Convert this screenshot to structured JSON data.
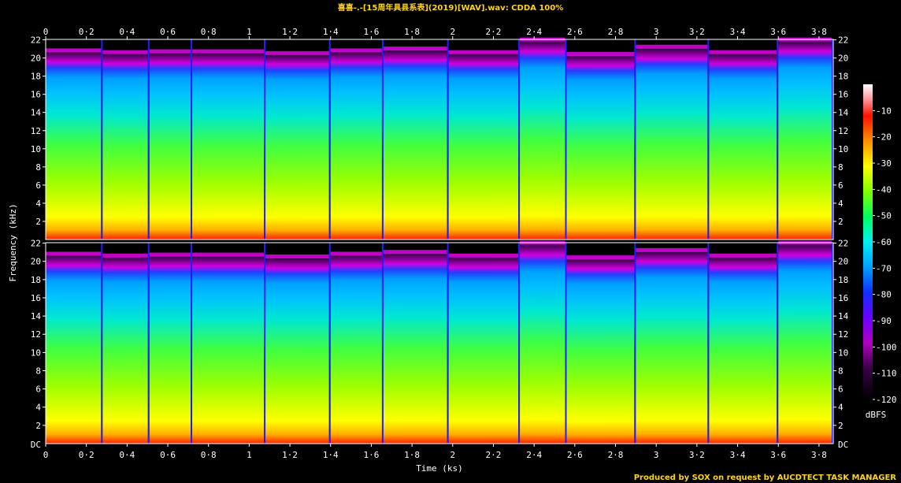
{
  "title": "喜喜-.-[15周年具县系表](2019)[WAV].wav: CDDA 100%",
  "footer": "Produced by SOX on request by AUCDTECT TASK MANAGER",
  "chart_data": {
    "type": "heatmap",
    "subtype": "spectrogram",
    "channels": 2,
    "xlabel": "Time (ks)",
    "ylabel": "Frequency (kHz)",
    "xlim": [
      0,
      3.87
    ],
    "ylim": [
      0,
      22.05
    ],
    "x_ticks": [
      "0",
      "0·2",
      "0·4",
      "0·6",
      "0·8",
      "1",
      "1·2",
      "1·4",
      "1·6",
      "1·8",
      "2",
      "2·2",
      "2·4",
      "2·6",
      "2·8",
      "3",
      "3·2",
      "3·4",
      "3·6",
      "3·8"
    ],
    "x_tick_values": [
      0,
      0.2,
      0.4,
      0.6,
      0.8,
      1.0,
      1.2,
      1.4,
      1.6,
      1.8,
      2.0,
      2.2,
      2.4,
      2.6,
      2.8,
      3.0,
      3.2,
      3.4,
      3.6,
      3.8
    ],
    "y_ticks": [
      "2",
      "4",
      "6",
      "8",
      "10",
      "12",
      "14",
      "16",
      "18",
      "20",
      "22"
    ],
    "y_tick_values": [
      2,
      4,
      6,
      8,
      10,
      12,
      14,
      16,
      18,
      20,
      22
    ],
    "y_tick_dc_label": "DC",
    "colorbar": {
      "label": "dBFS",
      "ticks": [
        "-10",
        "-20",
        "-30",
        "-40",
        "-50",
        "-60",
        "-70",
        "-80",
        "-90",
        "-100",
        "-110",
        "-120"
      ],
      "tick_values": [
        -10,
        -20,
        -30,
        -40,
        -50,
        -60,
        -70,
        -80,
        -90,
        -100,
        -110,
        -120
      ],
      "range": [
        -120,
        0
      ]
    },
    "track_boundaries_ks": [
      0,
      0.28,
      0.51,
      0.72,
      1.08,
      1.4,
      1.66,
      1.98,
      2.33,
      2.56,
      2.9,
      3.26,
      3.6,
      3.87
    ],
    "track_cutoff_khz": [
      20.8,
      20.6,
      20.7,
      20.7,
      20.5,
      20.8,
      21.0,
      20.6,
      22.0,
      20.4,
      21.2,
      20.6,
      22.0
    ],
    "colors": {
      "background": "#000000",
      "title": "#ffd21e",
      "axis": "#ffffff"
    }
  }
}
